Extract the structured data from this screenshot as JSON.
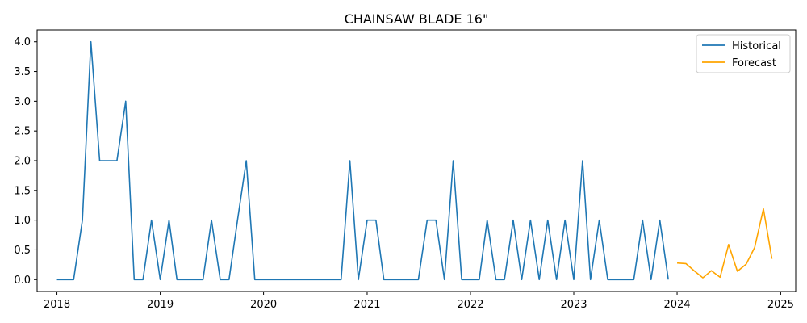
{
  "chart_data": {
    "type": "line",
    "title": "CHAINSAW BLADE 16\"",
    "xlabel": "",
    "ylabel": "",
    "xlim": [
      "2017-10-23",
      "2025-02-23"
    ],
    "ylim": [
      -0.2,
      4.2
    ],
    "x_ticks": [
      {
        "date": "2018-01-01",
        "label": "2018"
      },
      {
        "date": "2019-01-01",
        "label": "2019"
      },
      {
        "date": "2020-01-01",
        "label": "2020"
      },
      {
        "date": "2021-01-01",
        "label": "2021"
      },
      {
        "date": "2022-01-01",
        "label": "2022"
      },
      {
        "date": "2023-01-01",
        "label": "2023"
      },
      {
        "date": "2024-01-01",
        "label": "2024"
      },
      {
        "date": "2025-01-01",
        "label": "2025"
      }
    ],
    "y_ticks": [
      {
        "value": 0.0,
        "label": "0.0"
      },
      {
        "value": 0.5,
        "label": "0.5"
      },
      {
        "value": 1.0,
        "label": "1.0"
      },
      {
        "value": 1.5,
        "label": "1.5"
      },
      {
        "value": 2.0,
        "label": "2.0"
      },
      {
        "value": 2.5,
        "label": "2.5"
      },
      {
        "value": 3.0,
        "label": "3.0"
      },
      {
        "value": 3.5,
        "label": "3.5"
      },
      {
        "value": 4.0,
        "label": "4.0"
      }
    ],
    "grid": false,
    "legend_position": "top-right",
    "series": [
      {
        "name": "Historical",
        "color": "#1f77b4",
        "x": [
          "2018-01",
          "2018-02",
          "2018-03",
          "2018-04",
          "2018-05",
          "2018-06",
          "2018-07",
          "2018-08",
          "2018-09",
          "2018-10",
          "2018-11",
          "2018-12",
          "2019-01",
          "2019-02",
          "2019-03",
          "2019-04",
          "2019-05",
          "2019-06",
          "2019-07",
          "2019-08",
          "2019-09",
          "2019-10",
          "2019-11",
          "2019-12",
          "2020-01",
          "2020-02",
          "2020-03",
          "2020-04",
          "2020-05",
          "2020-06",
          "2020-07",
          "2020-08",
          "2020-09",
          "2020-10",
          "2020-11",
          "2020-12",
          "2021-01",
          "2021-02",
          "2021-03",
          "2021-04",
          "2021-05",
          "2021-06",
          "2021-07",
          "2021-08",
          "2021-09",
          "2021-10",
          "2021-11",
          "2021-12",
          "2022-01",
          "2022-02",
          "2022-03",
          "2022-04",
          "2022-05",
          "2022-06",
          "2022-07",
          "2022-08",
          "2022-09",
          "2022-10",
          "2022-11",
          "2022-12",
          "2023-01",
          "2023-02",
          "2023-03",
          "2023-04",
          "2023-05",
          "2023-06",
          "2023-07",
          "2023-08",
          "2023-09",
          "2023-10",
          "2023-11",
          "2023-12"
        ],
        "values": [
          0,
          0,
          0,
          1,
          4,
          2,
          2,
          2,
          3,
          0,
          0,
          1,
          0,
          1,
          0,
          0,
          0,
          0,
          1,
          0,
          0,
          1,
          2,
          0,
          0,
          0,
          0,
          0,
          0,
          0,
          0,
          0,
          0,
          0,
          2,
          0,
          1,
          1,
          0,
          0,
          0,
          0,
          0,
          1,
          1,
          0,
          2,
          0,
          0,
          0,
          1,
          0,
          0,
          1,
          0,
          1,
          0,
          1,
          0,
          1,
          0,
          2,
          0,
          1,
          0,
          0,
          0,
          0,
          1,
          0,
          1,
          0
        ]
      },
      {
        "name": "Forecast",
        "color": "#ffa500",
        "x": [
          "2024-01",
          "2024-02",
          "2024-03",
          "2024-04",
          "2024-05",
          "2024-06",
          "2024-07",
          "2024-08",
          "2024-09",
          "2024-10",
          "2024-11",
          "2024-12"
        ],
        "values": [
          0.28,
          0.27,
          0.15,
          0.03,
          0.15,
          0.04,
          0.59,
          0.14,
          0.26,
          0.54,
          1.19,
          0.35
        ]
      }
    ]
  }
}
